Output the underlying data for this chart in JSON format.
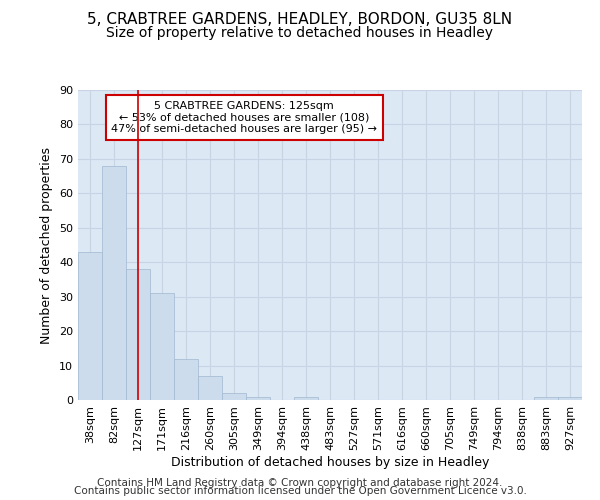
{
  "title1": "5, CRABTREE GARDENS, HEADLEY, BORDON, GU35 8LN",
  "title2": "Size of property relative to detached houses in Headley",
  "xlabel": "Distribution of detached houses by size in Headley",
  "ylabel": "Number of detached properties",
  "categories": [
    "38sqm",
    "82sqm",
    "127sqm",
    "171sqm",
    "216sqm",
    "260sqm",
    "305sqm",
    "349sqm",
    "394sqm",
    "438sqm",
    "483sqm",
    "527sqm",
    "571sqm",
    "616sqm",
    "660sqm",
    "705sqm",
    "749sqm",
    "794sqm",
    "838sqm",
    "883sqm",
    "927sqm"
  ],
  "values": [
    43,
    68,
    38,
    31,
    12,
    7,
    2,
    1,
    0,
    1,
    0,
    0,
    0,
    0,
    0,
    0,
    0,
    0,
    0,
    1,
    1
  ],
  "bar_color": "#cddcec",
  "bar_edge_color": "#a0b8d0",
  "bar_edge_width": 0.5,
  "grid_color": "#c8d4e4",
  "vline_x": 2,
  "vline_color": "#cc0000",
  "vline_linewidth": 1.2,
  "ylim": [
    0,
    90
  ],
  "yticks": [
    0,
    10,
    20,
    30,
    40,
    50,
    60,
    70,
    80,
    90
  ],
  "annotation_line1": "5 CRABTREE GARDENS: 125sqm",
  "annotation_line2": "← 53% of detached houses are smaller (108)",
  "annotation_line3": "47% of semi-detached houses are larger (95) →",
  "annotation_box_color": "#ffffff",
  "annotation_border_color": "#cc0000",
  "footer_line1": "Contains HM Land Registry data © Crown copyright and database right 2024.",
  "footer_line2": "Contains public sector information licensed under the Open Government Licence v3.0.",
  "bg_color": "#dce8f4",
  "fig_bg_color": "#ffffff",
  "title1_fontsize": 11,
  "title2_fontsize": 10,
  "xlabel_fontsize": 9,
  "ylabel_fontsize": 9,
  "tick_fontsize": 8,
  "annot_fontsize": 8,
  "footer_fontsize": 7.5
}
